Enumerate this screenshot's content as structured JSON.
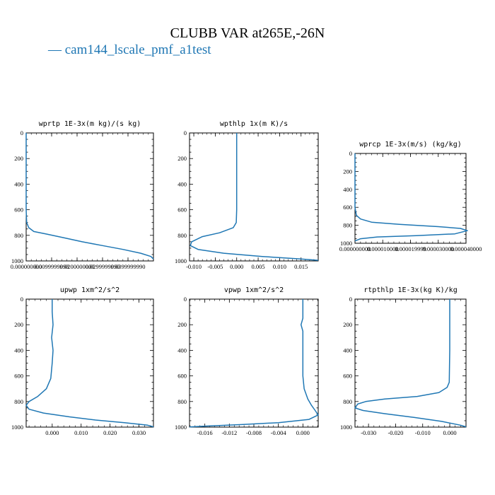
{
  "figure": {
    "title": "CLUBB VAR at265E,-26N",
    "legend": [
      {
        "label": "cam144_lscale_pmf_a1test",
        "color": "#1f77b4"
      }
    ]
  },
  "chart_data": [
    {
      "type": "line",
      "title": "wprtp  1E-3x(m kg)/(s kg)",
      "ylim": [
        1000,
        0
      ],
      "xlim": [
        0,
        0.05
      ],
      "yticks": [
        0,
        200,
        400,
        600,
        800,
        1000
      ],
      "xticks": [
        0.0,
        0.01,
        0.02,
        0.03,
        0.04
      ],
      "xtick_labels": [
        "0.000000000",
        "0.0099999998",
        "0.0200000000",
        "0.0299999990",
        "0.0399999990"
      ],
      "series": [
        {
          "x": [
            0,
            0,
            0.0002,
            0.001,
            0.003,
            0.008,
            0.015,
            0.022,
            0.03,
            0.038,
            0.045,
            0.049,
            0.05
          ],
          "y": [
            0,
            600,
            700,
            740,
            770,
            790,
            820,
            850,
            880,
            910,
            940,
            965,
            985
          ]
        }
      ]
    },
    {
      "type": "line",
      "title": "wpthlp  1x(m K)/s",
      "ylim": [
        1000,
        0
      ],
      "xlim": [
        -0.011,
        0.019
      ],
      "yticks": [
        0,
        200,
        400,
        600,
        800,
        1000
      ],
      "xticks": [
        -0.01,
        -0.005,
        0.0,
        0.005,
        0.01,
        0.015
      ],
      "xtick_labels": [
        "-0.010",
        "-0.005",
        "0.000",
        "0.005",
        "0.010",
        "0.015"
      ],
      "series": [
        {
          "x": [
            0.0,
            0.0,
            0.0,
            -0.0001,
            -0.0008,
            -0.004,
            -0.008,
            -0.0105,
            -0.0108,
            -0.009,
            -0.003,
            0.006,
            0.015,
            0.019
          ],
          "y": [
            0,
            300,
            600,
            700,
            740,
            780,
            810,
            850,
            880,
            910,
            940,
            965,
            985,
            995
          ]
        }
      ]
    },
    {
      "type": "line",
      "title": "wprcp  1E-3x(m/s) (kg/kg)",
      "ylim": [
        1000,
        0
      ],
      "xlim": [
        0,
        4e-05
      ],
      "yticks": [
        0,
        200,
        400,
        600,
        800,
        1000
      ],
      "xticks": [
        0,
        1e-05,
        2e-05,
        3e-05,
        4e-05
      ],
      "xtick_labels": [
        "0.000000000",
        "0.000010000",
        "0.000019999",
        "0.000030000",
        "0.000040000"
      ],
      "series": [
        {
          "x": [
            0,
            0,
            5e-07,
            2e-06,
            6e-06,
            1.6e-05,
            3e-05,
            3.8e-05,
            4.05e-05,
            3.6e-05,
            2.2e-05,
            8e-06,
            2e-06,
            0
          ],
          "y": [
            0,
            600,
            690,
            730,
            765,
            790,
            815,
            835,
            860,
            895,
            915,
            930,
            950,
            975
          ]
        }
      ]
    },
    {
      "type": "line",
      "title": "upwp  1xm^2/s^2",
      "ylim": [
        1000,
        0
      ],
      "xlim": [
        -0.009,
        0.035
      ],
      "yticks": [
        0,
        200,
        400,
        600,
        800,
        1000
      ],
      "xticks": [
        0.0,
        0.01,
        0.02,
        0.03
      ],
      "xtick_labels": [
        "0.000",
        "0.010",
        "0.020",
        "0.030"
      ],
      "series": [
        {
          "x": [
            0.0,
            0.0,
            0.0003,
            -0.0002,
            0.0003,
            0.0,
            -0.0005,
            -0.002,
            -0.005,
            -0.008,
            -0.009,
            -0.008,
            -0.003,
            0.006,
            0.015,
            0.025,
            0.033,
            0.035
          ],
          "y": [
            0,
            100,
            200,
            300,
            400,
            500,
            620,
            700,
            760,
            800,
            830,
            860,
            890,
            920,
            945,
            965,
            985,
            998
          ]
        }
      ]
    },
    {
      "type": "line",
      "title": "vpwp  1xm^2/s^2",
      "ylim": [
        1000,
        0
      ],
      "xlim": [
        -0.0185,
        0.0025
      ],
      "yticks": [
        0,
        200,
        400,
        600,
        800,
        1000
      ],
      "xticks": [
        -0.016,
        -0.012,
        -0.008,
        -0.004,
        0.0
      ],
      "xtick_labels": [
        "-0.016",
        "-0.012",
        "-0.008",
        "-0.004",
        "0.000"
      ],
      "series": [
        {
          "x": [
            0.0,
            0.0,
            -0.0003,
            0.0,
            0.0,
            0.0,
            0.0,
            0.0002,
            0.0008,
            0.0014,
            0.002,
            0.0025,
            0.001,
            -0.004,
            -0.01,
            -0.016,
            -0.0185
          ],
          "y": [
            0,
            150,
            200,
            250,
            400,
            500,
            600,
            700,
            780,
            830,
            870,
            905,
            940,
            965,
            980,
            992,
            999
          ]
        }
      ]
    },
    {
      "type": "line",
      "title": "rtpthlp  1E-3x(kg K)/kg",
      "ylim": [
        1000,
        0
      ],
      "xlim": [
        -0.035,
        0.006
      ],
      "yticks": [
        0,
        200,
        400,
        600,
        800,
        1000
      ],
      "xticks": [
        -0.03,
        -0.02,
        -0.01,
        0.0
      ],
      "xtick_labels": [
        "-0.030",
        "-0.020",
        "-0.010",
        "0.000"
      ],
      "series": [
        {
          "x": [
            0.0,
            0.0,
            -0.0002,
            -0.001,
            -0.004,
            -0.012,
            -0.024,
            -0.031,
            -0.034,
            -0.035,
            -0.032,
            -0.024,
            -0.013,
            -0.003,
            0.004,
            0.006
          ],
          "y": [
            0,
            400,
            650,
            690,
            730,
            760,
            780,
            800,
            820,
            850,
            870,
            895,
            925,
            955,
            985,
            998
          ]
        }
      ]
    }
  ]
}
